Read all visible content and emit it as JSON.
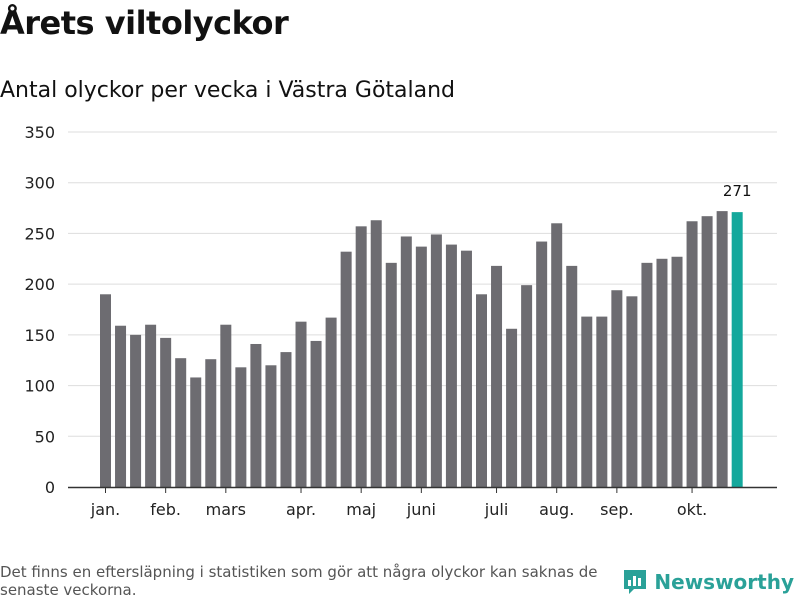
{
  "header": {
    "title": "Årets viltolyckor",
    "subtitle": "Antal olyckor per vecka i Västra Götaland"
  },
  "footnote": "Det finns en eftersläpning i statistiken som gör att några olyckor kan saknas de senaste veckorna.",
  "brand": {
    "name": "Newsworthy",
    "color": "#2aa198"
  },
  "colors": {
    "bar": "#6d6c71",
    "highlight": "#14a89c",
    "grid": "#dddddd",
    "axis": "#333333"
  },
  "chart_data": {
    "type": "bar",
    "title": "Antal olyckor per vecka i Västra Götaland",
    "xlabel": "",
    "ylabel": "",
    "ylim": [
      0,
      350
    ],
    "yticks": [
      0,
      50,
      100,
      150,
      200,
      250,
      300,
      350
    ],
    "values": [
      190,
      159,
      150,
      160,
      147,
      127,
      108,
      126,
      160,
      118,
      141,
      120,
      133,
      163,
      144,
      167,
      232,
      257,
      263,
      221,
      247,
      237,
      249,
      239,
      233,
      190,
      218,
      156,
      199,
      242,
      260,
      218,
      168,
      168,
      194,
      188,
      221,
      225,
      227,
      262,
      267,
      272,
      271
    ],
    "highlight_index": 42,
    "data_labels": [
      {
        "index": 42,
        "text": "271"
      }
    ],
    "month_labels": [
      {
        "label": "jan.",
        "bar_index": 0
      },
      {
        "label": "feb.",
        "bar_index": 4
      },
      {
        "label": "mars",
        "bar_index": 8
      },
      {
        "label": "apr.",
        "bar_index": 13
      },
      {
        "label": "maj",
        "bar_index": 17
      },
      {
        "label": "juni",
        "bar_index": 21
      },
      {
        "label": "juli",
        "bar_index": 26
      },
      {
        "label": "aug.",
        "bar_index": 30
      },
      {
        "label": "sep.",
        "bar_index": 34
      },
      {
        "label": "okt.",
        "bar_index": 39
      }
    ],
    "grid": true
  }
}
